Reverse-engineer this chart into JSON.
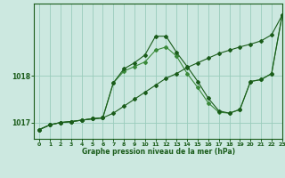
{
  "title": "Graphe pression niveau de la mer (hPa)",
  "background_color": "#cce8e0",
  "grid_color": "#99ccbb",
  "line_color_dark": "#1a5c1a",
  "line_color_light": "#3a8a3a",
  "yticks": [
    1017,
    1018
  ],
  "xlim": [
    -0.5,
    23
  ],
  "ylim": [
    1016.65,
    1019.55
  ],
  "hours": [
    0,
    1,
    2,
    3,
    4,
    5,
    6,
    7,
    8,
    9,
    10,
    11,
    12,
    13,
    14,
    15,
    16,
    17,
    18,
    19,
    20,
    21,
    22,
    23
  ],
  "series1": [
    1016.85,
    1016.95,
    1017.0,
    1017.02,
    1017.05,
    1017.08,
    1017.1,
    1017.2,
    1017.35,
    1017.5,
    1017.65,
    1017.8,
    1017.95,
    1018.05,
    1018.18,
    1018.28,
    1018.38,
    1018.48,
    1018.55,
    1018.62,
    1018.68,
    1018.75,
    1018.88,
    1019.3
  ],
  "series2": [
    1016.85,
    1016.95,
    1017.0,
    1017.02,
    1017.05,
    1017.08,
    1017.1,
    1017.85,
    1018.1,
    1018.2,
    1018.3,
    1018.55,
    1018.62,
    1018.42,
    1018.05,
    1017.75,
    1017.42,
    1017.22,
    1017.2,
    1017.28,
    1017.88,
    1017.92,
    1018.05,
    1019.3
  ],
  "series3": [
    1016.85,
    1016.95,
    1017.0,
    1017.02,
    1017.05,
    1017.08,
    1017.1,
    1017.85,
    1018.15,
    1018.28,
    1018.45,
    1018.85,
    1018.85,
    1018.5,
    1018.2,
    1017.88,
    1017.52,
    1017.25,
    1017.2,
    1017.28,
    1017.88,
    1017.92,
    1018.05,
    1019.3
  ]
}
